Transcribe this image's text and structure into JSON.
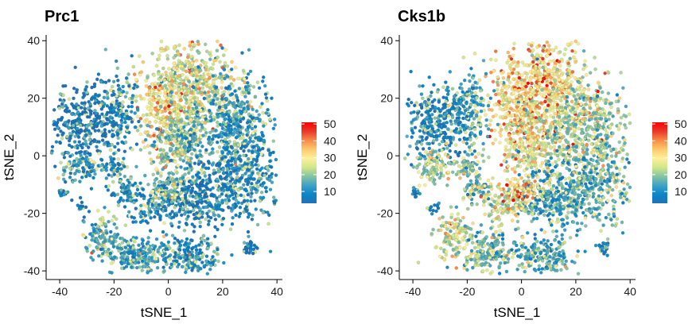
{
  "chart_data": [
    {
      "type": "scatter",
      "title": "Prc1",
      "xlabel": "tSNE_1",
      "ylabel": "tSNE_2",
      "xlim": [
        -45,
        42
      ],
      "ylim": [
        -43,
        42
      ],
      "xticks": [
        -40,
        -20,
        0,
        20,
        40
      ],
      "yticks": [
        -40,
        -20,
        0,
        20,
        40
      ],
      "grid": false,
      "legend": {
        "position": "right",
        "ticks": [
          10,
          20,
          30,
          40,
          50
        ],
        "range": [
          3,
          51
        ]
      },
      "colorscale": [
        "#2171b5",
        "#0a85c8",
        "#3fa2c4",
        "#86c3a3",
        "#d1e68a",
        "#fef09a",
        "#fdc96b",
        "#f88a48",
        "#e8392a",
        "#ff0000"
      ],
      "clusters": [
        {
          "cx": 9,
          "cy": 25,
          "sx": 9,
          "sy": 10,
          "n": 520,
          "mean": 28
        },
        {
          "cx": -2,
          "cy": 16,
          "sx": 6,
          "sy": 9,
          "n": 260,
          "mean": 33
        },
        {
          "cx": 4,
          "cy": 4,
          "sx": 7,
          "sy": 7,
          "n": 260,
          "mean": 22
        },
        {
          "cx": 24,
          "cy": 10,
          "sx": 9,
          "sy": 10,
          "n": 480,
          "mean": 16
        },
        {
          "cx": 25,
          "cy": -10,
          "sx": 9,
          "sy": 8,
          "n": 360,
          "mean": 13
        },
        {
          "cx": 10,
          "cy": -15,
          "sx": 7,
          "sy": 6,
          "n": 230,
          "mean": 10
        },
        {
          "cx": -30,
          "cy": 12,
          "sx": 8,
          "sy": 8,
          "n": 360,
          "mean": 9
        },
        {
          "cx": -18,
          "cy": 16,
          "sx": 4,
          "sy": 8,
          "n": 130,
          "mean": 14
        },
        {
          "cx": -32,
          "cy": -4,
          "sx": 5,
          "sy": 3,
          "n": 100,
          "mean": 16
        },
        {
          "cx": -20,
          "cy": -4,
          "sx": 3,
          "sy": 2.5,
          "n": 50,
          "mean": 14
        },
        {
          "cx": -16,
          "cy": -12,
          "sx": 3,
          "sy": 2.5,
          "n": 60,
          "mean": 15
        },
        {
          "cx": -5,
          "cy": -17,
          "sx": 6,
          "sy": 4,
          "n": 140,
          "mean": 14
        },
        {
          "cx": 0,
          "cy": -12,
          "sx": 4,
          "sy": 3,
          "n": 80,
          "mean": 22
        },
        {
          "cx": -25,
          "cy": -28,
          "sx": 4,
          "sy": 5,
          "n": 110,
          "mean": 20
        },
        {
          "cx": -12,
          "cy": -34,
          "sx": 7,
          "sy": 4,
          "n": 200,
          "mean": 18
        },
        {
          "cx": 8,
          "cy": -35,
          "sx": 7,
          "sy": 4,
          "n": 200,
          "mean": 15
        },
        {
          "cx": 30,
          "cy": -32,
          "sx": 1.5,
          "sy": 1.5,
          "n": 25,
          "mean": 10
        },
        {
          "cx": -39,
          "cy": -13,
          "sx": 1.5,
          "sy": 1,
          "n": 15,
          "mean": 8
        },
        {
          "cx": -32,
          "cy": -18,
          "sx": 1.5,
          "sy": 1.5,
          "n": 12,
          "mean": 10
        }
      ]
    },
    {
      "type": "scatter",
      "title": "Cks1b",
      "xlabel": "tSNE_1",
      "ylabel": "tSNE_2",
      "xlim": [
        -45,
        42
      ],
      "ylim": [
        -43,
        42
      ],
      "xticks": [
        -40,
        -20,
        0,
        20,
        40
      ],
      "yticks": [
        -40,
        -20,
        0,
        20,
        40
      ],
      "grid": false,
      "legend": {
        "position": "right",
        "ticks": [
          10,
          20,
          30,
          40,
          50
        ],
        "range": [
          3,
          51
        ]
      },
      "colorscale": [
        "#2171b5",
        "#0a85c8",
        "#3fa2c4",
        "#86c3a3",
        "#d1e68a",
        "#fef09a",
        "#fdc96b",
        "#f88a48",
        "#e8392a",
        "#ff0000"
      ],
      "clusters": [
        {
          "cx": 9,
          "cy": 25,
          "sx": 9,
          "sy": 10,
          "n": 520,
          "mean": 34
        },
        {
          "cx": -2,
          "cy": 16,
          "sx": 6,
          "sy": 9,
          "n": 260,
          "mean": 35
        },
        {
          "cx": 4,
          "cy": 4,
          "sx": 7,
          "sy": 7,
          "n": 260,
          "mean": 30
        },
        {
          "cx": 24,
          "cy": 10,
          "sx": 9,
          "sy": 10,
          "n": 480,
          "mean": 25
        },
        {
          "cx": 25,
          "cy": -10,
          "sx": 9,
          "sy": 8,
          "n": 360,
          "mean": 20
        },
        {
          "cx": 10,
          "cy": -15,
          "sx": 7,
          "sy": 6,
          "n": 230,
          "mean": 15
        },
        {
          "cx": -30,
          "cy": 12,
          "sx": 8,
          "sy": 8,
          "n": 360,
          "mean": 13
        },
        {
          "cx": -18,
          "cy": 16,
          "sx": 4,
          "sy": 8,
          "n": 130,
          "mean": 18
        },
        {
          "cx": -32,
          "cy": -4,
          "sx": 5,
          "sy": 3,
          "n": 100,
          "mean": 25
        },
        {
          "cx": -20,
          "cy": -4,
          "sx": 3,
          "sy": 2.5,
          "n": 50,
          "mean": 22
        },
        {
          "cx": -16,
          "cy": -12,
          "sx": 3,
          "sy": 2.5,
          "n": 60,
          "mean": 20
        },
        {
          "cx": -5,
          "cy": -17,
          "sx": 6,
          "sy": 4,
          "n": 140,
          "mean": 28
        },
        {
          "cx": 0,
          "cy": -12,
          "sx": 4,
          "sy": 3,
          "n": 80,
          "mean": 34
        },
        {
          "cx": -25,
          "cy": -28,
          "sx": 4,
          "sy": 5,
          "n": 110,
          "mean": 28
        },
        {
          "cx": -12,
          "cy": -34,
          "sx": 7,
          "sy": 4,
          "n": 200,
          "mean": 22
        },
        {
          "cx": 8,
          "cy": -35,
          "sx": 7,
          "sy": 4,
          "n": 200,
          "mean": 18
        },
        {
          "cx": 30,
          "cy": -32,
          "sx": 1.5,
          "sy": 1.5,
          "n": 25,
          "mean": 12
        },
        {
          "cx": -39,
          "cy": -13,
          "sx": 1.5,
          "sy": 1,
          "n": 15,
          "mean": 10
        },
        {
          "cx": -32,
          "cy": -18,
          "sx": 1.5,
          "sy": 1.5,
          "n": 12,
          "mean": 12
        }
      ]
    }
  ]
}
